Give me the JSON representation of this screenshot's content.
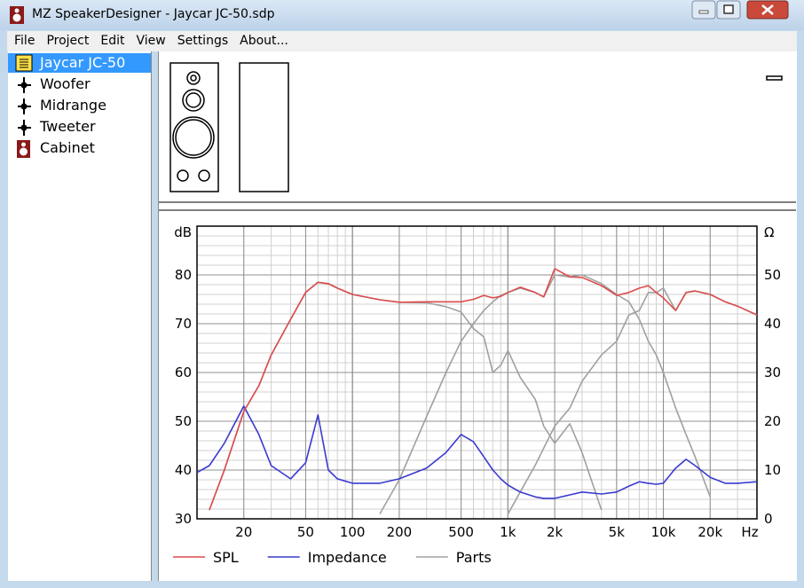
{
  "window": {
    "title": "MZ SpeakerDesigner - Jaycar JC-50.sdp"
  },
  "menu": [
    "File",
    "Project",
    "Edit",
    "View",
    "Settings",
    "About..."
  ],
  "tree": {
    "root": "Jaycar JC-50",
    "children": [
      "Woofer",
      "Midrange",
      "Tweeter",
      "Cabinet"
    ]
  },
  "chart_data": {
    "type": "line",
    "x_label": "Hz",
    "y_label": "dB",
    "y2_label": "Ω",
    "x": [
      10,
      12,
      15,
      20,
      25,
      30,
      40,
      50,
      60,
      70,
      80,
      100,
      150,
      200,
      300,
      400,
      500,
      600,
      700,
      800,
      900,
      1000,
      1200,
      1500,
      1700,
      2000,
      2500,
      3000,
      4000,
      5000,
      6000,
      7000,
      8000,
      9000,
      10000,
      12000,
      14000,
      16000,
      20000,
      25000,
      30000,
      40000
    ],
    "xscale": "log",
    "xlim": [
      10,
      40000
    ],
    "xticks": [
      20,
      50,
      100,
      200,
      500,
      {
        "value": 1000,
        "label": "1k"
      },
      {
        "value": 2000,
        "label": "2k"
      },
      {
        "value": 5000,
        "label": "5k"
      },
      {
        "value": 10000,
        "label": "10k"
      },
      {
        "value": 20000,
        "label": "20k"
      }
    ],
    "ylim": [
      30,
      90
    ],
    "yticks": [
      30,
      40,
      50,
      60,
      70,
      80
    ],
    "y2lim": [
      0,
      60
    ],
    "y2ticks": [
      0,
      10,
      20,
      30,
      40,
      50
    ],
    "grid": true,
    "minor_grid": true,
    "legend": "bottom",
    "series": [
      {
        "name": "SPL",
        "color": "#dd4b4b",
        "values": [
          null,
          31.8,
          40,
          52,
          57.3,
          63.6,
          70.9,
          76.4,
          78.5,
          78.2,
          77.3,
          76,
          74.9,
          74.4,
          74.5,
          74.5,
          74.5,
          75,
          75.8,
          75.3,
          75.6,
          76.4,
          77.5,
          76.4,
          75.5,
          81.3,
          79.6,
          79.5,
          77.8,
          75.8,
          76.4,
          77.3,
          77.8,
          76.4,
          75.3,
          72.7,
          76.4,
          76.7,
          76,
          74.5,
          73.6,
          71.8
        ]
      },
      {
        "name": "Impedance",
        "color": "#3a3ad0",
        "axis": "y2",
        "values": [
          9.5,
          10.9,
          15.5,
          23.1,
          17.3,
          10.9,
          8.2,
          11.5,
          21.3,
          10,
          8.2,
          7.3,
          7.3,
          8.2,
          10.4,
          13.6,
          17.3,
          15.8,
          12.7,
          10,
          8.2,
          6.9,
          5.5,
          4.5,
          4.2,
          4.2,
          4.9,
          5.5,
          5.1,
          5.5,
          6.7,
          7.6,
          7.3,
          7.1,
          7.3,
          10.4,
          12.2,
          10.9,
          8.5,
          7.3,
          7.3,
          7.6
        ]
      },
      {
        "name": "Parts",
        "color": "#a0a0a0",
        "values": [
          null,
          31.8,
          40,
          52,
          57.3,
          63.6,
          70.9,
          76.4,
          78.5,
          78.2,
          77.3,
          76,
          74.9,
          74.4,
          74.3,
          73.5,
          72.4,
          69,
          67.3,
          60,
          61.5,
          64.5,
          59,
          54.5,
          49,
          45.5,
          49.5,
          43.6,
          31.8,
          null,
          null,
          null,
          null,
          null,
          null,
          null,
          null,
          null,
          null,
          null,
          null,
          null
        ]
      },
      {
        "color": "#a0a0a0",
        "values": [
          null,
          null,
          null,
          null,
          null,
          null,
          null,
          null,
          null,
          null,
          null,
          null,
          31,
          38,
          51,
          60,
          66.4,
          70,
          72.7,
          74.5,
          75.8,
          76.4,
          77.3,
          76.4,
          75.5,
          80,
          79.6,
          80,
          78.2,
          76,
          74.5,
          70.9,
          66.4,
          63.6,
          60,
          52.7,
          47.3,
          42.7,
          34.5,
          null,
          null,
          null
        ]
      },
      {
        "color": "#a0a0a0",
        "values": [
          null,
          null,
          null,
          null,
          null,
          null,
          null,
          null,
          null,
          null,
          null,
          null,
          null,
          null,
          null,
          null,
          null,
          null,
          null,
          null,
          null,
          31,
          35.5,
          41,
          44.5,
          49,
          52.7,
          58.2,
          63.6,
          66.4,
          71.8,
          72.7,
          76.4,
          76.4,
          77.3,
          72.7,
          76.4,
          76.7,
          76,
          74.5,
          73.6,
          71.8
        ]
      }
    ]
  }
}
